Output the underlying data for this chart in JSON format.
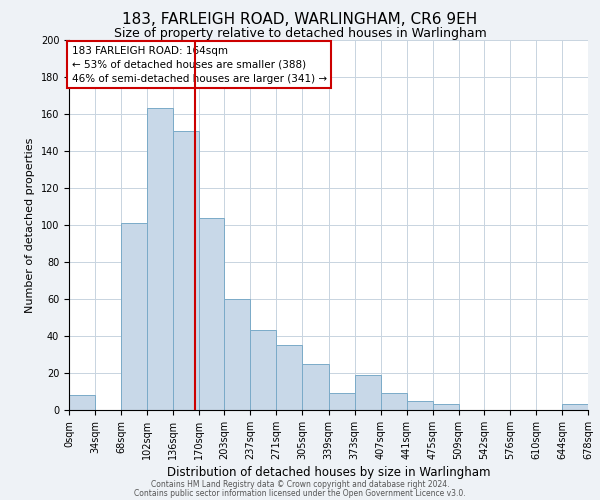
{
  "title": "183, FARLEIGH ROAD, WARLINGHAM, CR6 9EH",
  "subtitle": "Size of property relative to detached houses in Warlingham",
  "xlabel": "Distribution of detached houses by size in Warlingham",
  "ylabel": "Number of detached properties",
  "bin_edges": [
    0,
    34,
    68,
    102,
    136,
    170,
    203,
    237,
    271,
    305,
    339,
    373,
    407,
    441,
    475,
    509,
    542,
    576,
    610,
    644,
    678
  ],
  "bar_heights": [
    8,
    0,
    101,
    163,
    151,
    104,
    60,
    43,
    35,
    25,
    9,
    19,
    9,
    5,
    3,
    0,
    0,
    0,
    0,
    3
  ],
  "bar_color": "#c8d8e8",
  "bar_edgecolor": "#7aaac8",
  "vline_x": 164,
  "vline_color": "#cc0000",
  "annotation_line1": "183 FARLEIGH ROAD: 164sqm",
  "annotation_line2": "← 53% of detached houses are smaller (388)",
  "annotation_line3": "46% of semi-detached houses are larger (341) →",
  "annotation_box_color": "#cc0000",
  "ylim": [
    0,
    200
  ],
  "yticks": [
    0,
    20,
    40,
    60,
    80,
    100,
    120,
    140,
    160,
    180,
    200
  ],
  "tick_labels": [
    "0sqm",
    "34sqm",
    "68sqm",
    "102sqm",
    "136sqm",
    "170sqm",
    "203sqm",
    "237sqm",
    "271sqm",
    "305sqm",
    "339sqm",
    "373sqm",
    "407sqm",
    "441sqm",
    "475sqm",
    "509sqm",
    "542sqm",
    "576sqm",
    "610sqm",
    "644sqm",
    "678sqm"
  ],
  "footer_line1": "Contains HM Land Registry data © Crown copyright and database right 2024.",
  "footer_line2": "Contains public sector information licensed under the Open Government Licence v3.0.",
  "bg_color": "#eef2f6",
  "plot_bg_color": "#ffffff",
  "grid_color": "#c8d4e0",
  "title_fontsize": 11,
  "subtitle_fontsize": 9,
  "xlabel_fontsize": 8.5,
  "ylabel_fontsize": 8,
  "tick_fontsize": 7,
  "annotation_fontsize": 7.5,
  "footer_fontsize": 5.5
}
